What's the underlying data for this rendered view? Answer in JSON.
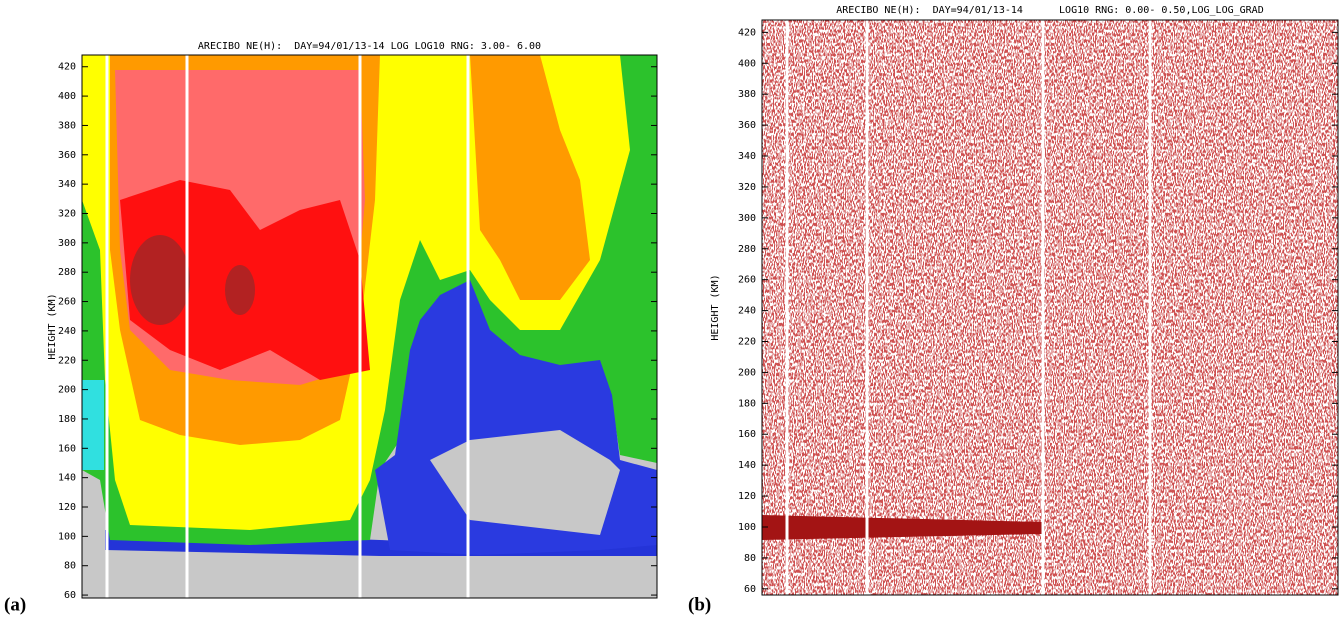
{
  "chart_data": [
    {
      "type": "heatmap",
      "panel_label": "(a)",
      "title": "ARECIBO NE(H):  DAY=94/01/13-14 LOG LOG10 RNG: 3.00- 6.00",
      "ylabel": "HEIGHT (KM)",
      "ylim": [
        58,
        428
      ],
      "yticks": [
        60,
        80,
        100,
        120,
        140,
        160,
        180,
        200,
        220,
        240,
        260,
        280,
        300,
        320,
        340,
        360,
        380,
        400,
        420
      ]
    },
    {
      "type": "heatmap",
      "panel_label": "(b)",
      "title": "ARECIBO NE(H):  DAY=94/01/13-14      LOG10 RNG: 0.00- 0.50,LOG_LOG_GRAD",
      "ylabel": "HEIGHT (KM)",
      "ylim": [
        56,
        428
      ],
      "yticks": [
        60,
        80,
        100,
        120,
        140,
        160,
        180,
        200,
        220,
        240,
        260,
        280,
        300,
        320,
        340,
        360,
        380,
        400,
        420
      ]
    }
  ]
}
